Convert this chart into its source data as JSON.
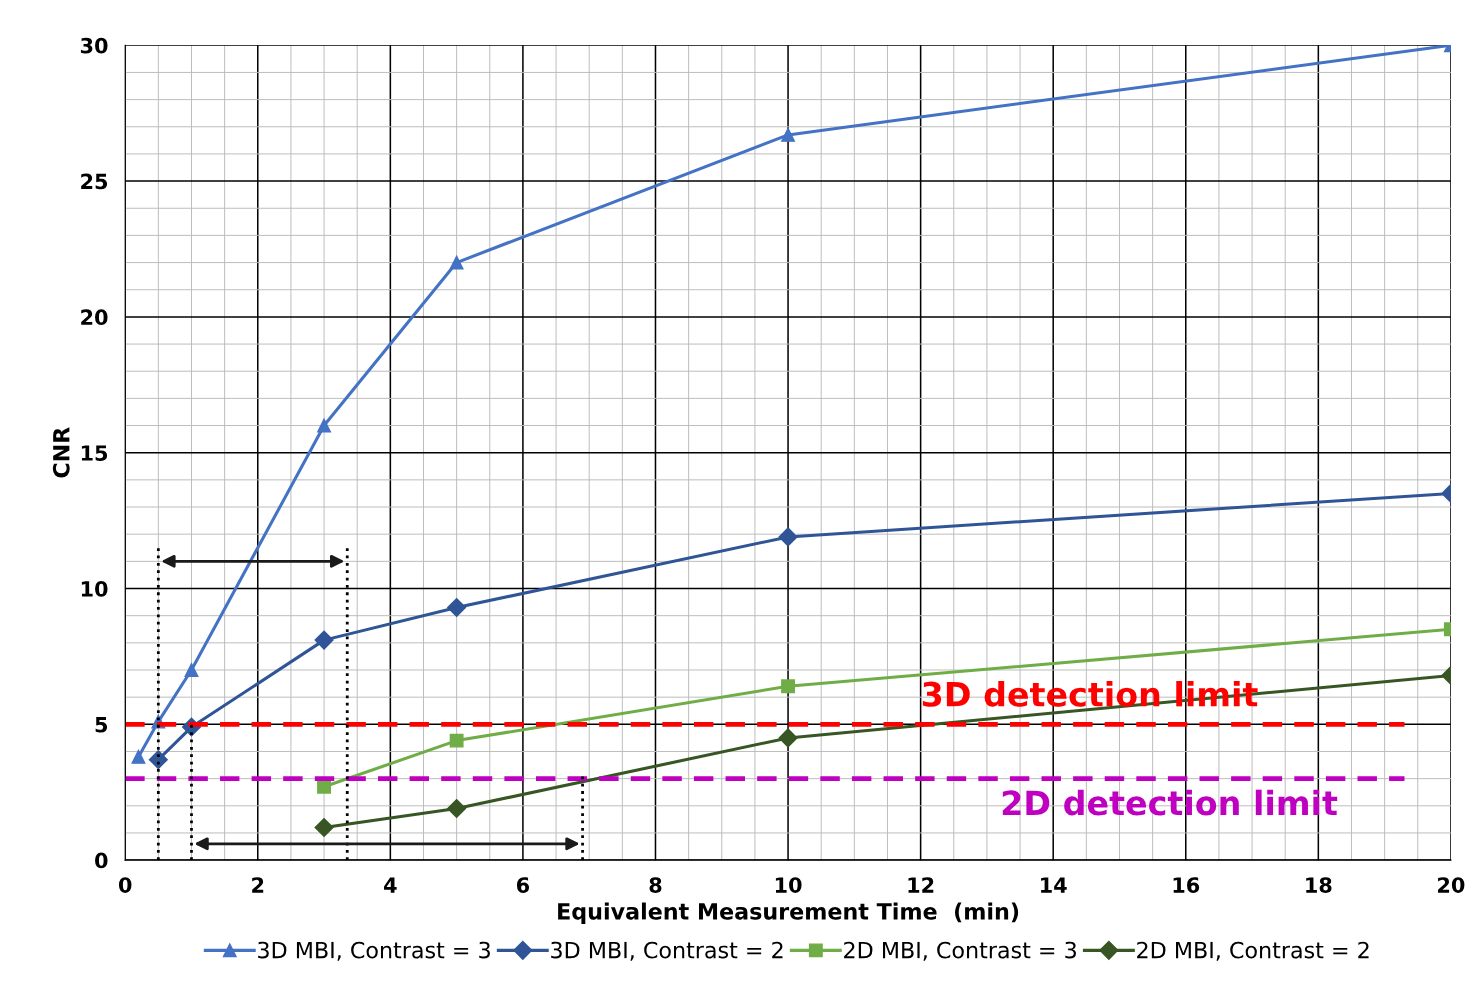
{
  "chart_data": {
    "type": "line",
    "xlabel": "Equivalent Measurement Time  (min)",
    "ylabel": "CNR",
    "xlim": [
      0,
      20
    ],
    "xticks": [
      0,
      2,
      4,
      6,
      8,
      10,
      12,
      14,
      16,
      18,
      20
    ],
    "ylim": [
      0,
      30
    ],
    "yticks": [
      0,
      5,
      10,
      15,
      20,
      25,
      30
    ],
    "grid": true,
    "legend": "bottom",
    "series": [
      {
        "name": "3D MBI, Contrast = 3",
        "color": "#4472c4",
        "marker": "triangle",
        "x": [
          0.2,
          0.5,
          1,
          3,
          5,
          10,
          20
        ],
        "values": [
          3.8,
          5.1,
          7,
          16,
          22,
          26.7,
          30
        ]
      },
      {
        "name": "3D MBI, Contrast = 2",
        "color": "#2f5597",
        "marker": "diamond",
        "x": [
          0.5,
          1,
          3,
          5,
          10,
          20
        ],
        "values": [
          3.7,
          4.9,
          8.1,
          9.3,
          11.9,
          13.5
        ]
      },
      {
        "name": "2D MBI, Contrast = 3",
        "color": "#70ad47",
        "marker": "square",
        "x": [
          3,
          5,
          10,
          20
        ],
        "values": [
          2.7,
          4.4,
          6.4,
          8.5
        ]
      },
      {
        "name": "2D MBI, Contrast = 2",
        "color": "#375623",
        "marker": "diamond",
        "x": [
          3,
          5,
          10,
          20
        ],
        "values": [
          1.2,
          1.9,
          4.5,
          6.8
        ]
      }
    ],
    "ref_lines": [
      {
        "axis": "y",
        "value": 5,
        "label": "3D detection limit",
        "color": "#ff0000",
        "line_style": "dashed"
      },
      {
        "axis": "y",
        "value": 3,
        "label": "2D detection limit",
        "color": "#c000c0",
        "line_style": "dashed"
      }
    ]
  }
}
